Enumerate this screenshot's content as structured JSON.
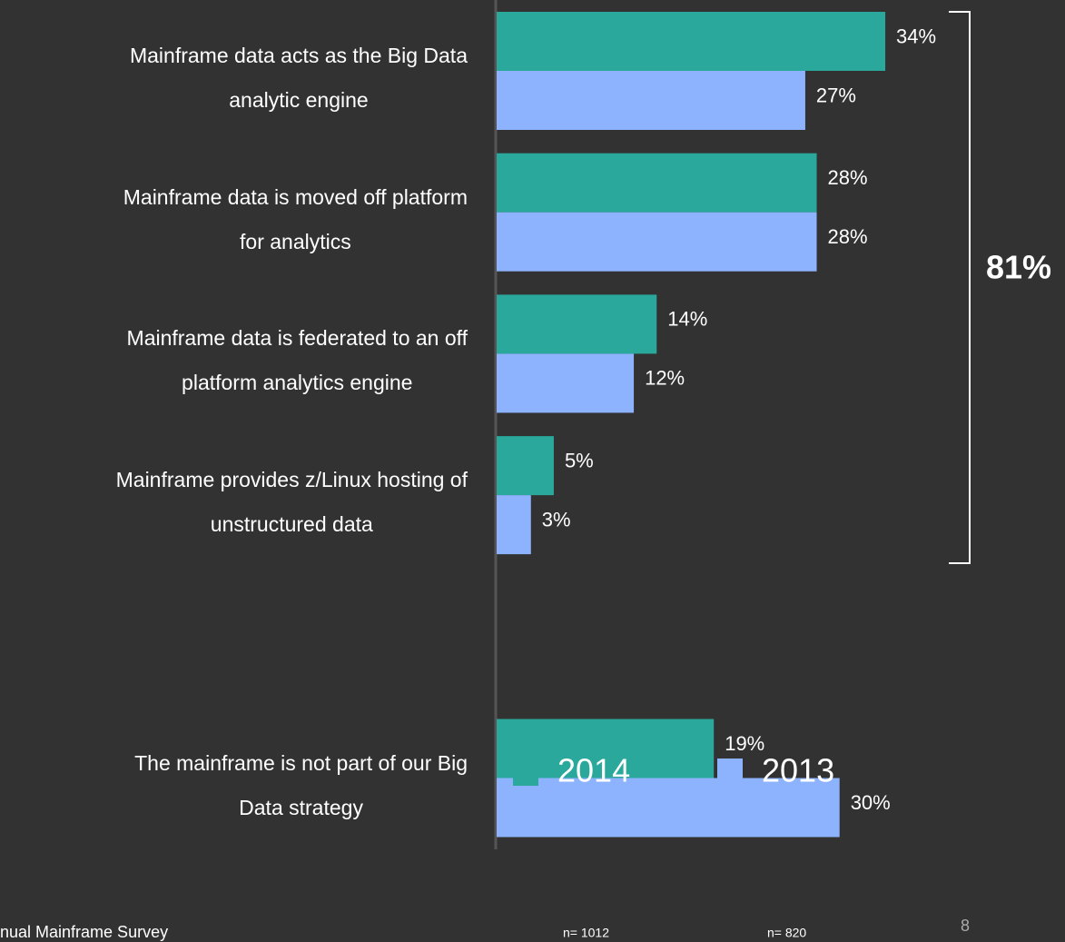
{
  "chart_data": {
    "type": "bar",
    "orientation": "horizontal",
    "categories": [
      "Mainframe data acts as the Big Data\nanalytic engine",
      "Mainframe data is moved off platform\nfor analytics",
      "Mainframe data is federated to an off\nplatform analytics engine",
      "Mainframe provides z/Linux hosting of\nunstructured data",
      null,
      "The mainframe is not part of our Big\nData strategy"
    ],
    "series": [
      {
        "name": "2014",
        "color": "#29a89b",
        "note": "n= 1012",
        "values": [
          34,
          28,
          14,
          5,
          null,
          19
        ],
        "value_labels": [
          "34%",
          "28%",
          "14%",
          "5%",
          null,
          "19%"
        ]
      },
      {
        "name": "2013",
        "color": "#8db3ff",
        "note": "n= 820",
        "values": [
          27,
          28,
          12,
          3,
          null,
          30
        ],
        "value_labels": [
          "27%",
          "28%",
          "12%",
          "3%",
          null,
          "30%"
        ]
      }
    ],
    "annotation": "81%",
    "footer": "nual Mainframe Survey",
    "page_number": "8"
  }
}
